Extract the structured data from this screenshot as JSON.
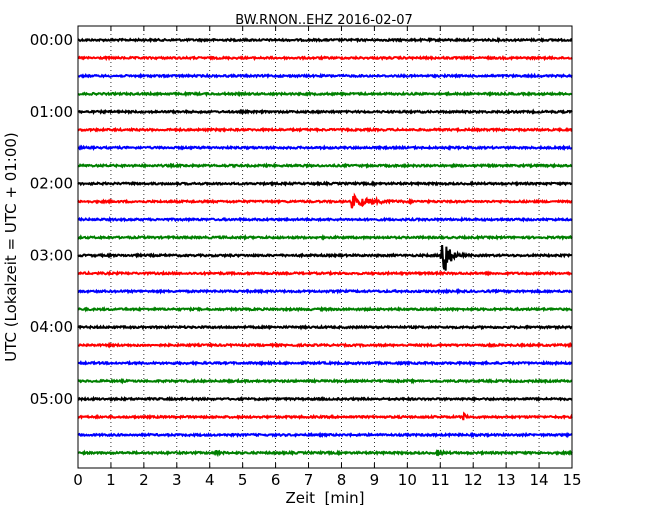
{
  "chart_data": {
    "type": "line",
    "title": "BW.RNON..EHZ 2016-02-07",
    "xlabel": "Zeit  [min]",
    "ylabel": "UTC (Lokalzeit = UTC + 01:00)",
    "xlim": [
      0,
      15
    ],
    "x_ticks": [
      "0",
      "1",
      "2",
      "3",
      "4",
      "5",
      "6",
      "7",
      "8",
      "9",
      "10",
      "11",
      "12",
      "13",
      "14",
      "15"
    ],
    "y_tick_labels": [
      "00:00",
      "01:00",
      "02:00",
      "03:00",
      "04:00",
      "05:00"
    ],
    "trace_interval_min": 15,
    "trace_count": 24,
    "colors": [
      "#000000",
      "#ff0000",
      "#0000ff",
      "#008000"
    ],
    "grid": "vertical dotted at each minute",
    "events": [
      {
        "trace": 9,
        "start_min": 8.3,
        "end_min": 10.2,
        "amplitude": 0.35,
        "decay": 2.2
      },
      {
        "trace": 12,
        "start_min": 11.0,
        "end_min": 12.0,
        "amplitude": 2.9,
        "decay": 7.0
      },
      {
        "trace": 23,
        "start_min": 4.2,
        "end_min": 4.5,
        "amplitude": 0.15,
        "decay": 10
      },
      {
        "trace": 23,
        "start_min": 10.9,
        "end_min": 11.5,
        "amplitude": 0.15,
        "decay": 8
      },
      {
        "trace": 21,
        "start_min": 11.7,
        "end_min": 11.9,
        "amplitude": 0.2,
        "decay": 10
      }
    ]
  }
}
